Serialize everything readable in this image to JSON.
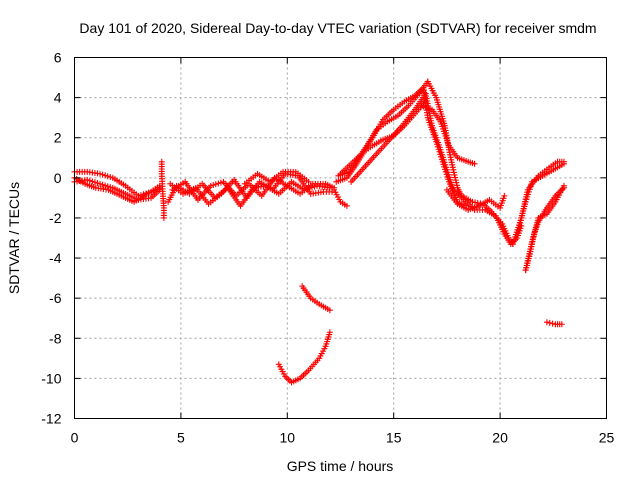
{
  "chart_data": {
    "type": "scatter",
    "title": "Day 101 of 2020, Sidereal Day-to-day VTEC variation (SDTVAR) for receiver smdm",
    "xlabel": "GPS time / hours",
    "ylabel": "SDTVAR / TECUs",
    "xlim": [
      0,
      25
    ],
    "ylim": [
      -12,
      6
    ],
    "x_ticks": [
      0,
      5,
      10,
      15,
      20,
      25
    ],
    "y_ticks": [
      -12,
      -10,
      -8,
      -6,
      -4,
      -2,
      0,
      2,
      4,
      6
    ],
    "x_tick_labels": [
      "0",
      "5",
      "10",
      "15",
      "20",
      "25"
    ],
    "y_tick_labels": [
      "-12",
      "-10",
      "-8",
      "-6",
      "-4",
      "-2",
      "0",
      "2",
      "4",
      "6"
    ],
    "grid": true,
    "marker": "plus",
    "series": [
      {
        "name": "SDTVAR",
        "color": "#ff0000",
        "tracks": [
          [
            [
              0.0,
              0.3
            ],
            [
              0.6,
              0.3
            ],
            [
              1.2,
              0.2
            ],
            [
              1.8,
              0.0
            ],
            [
              2.4,
              -0.4
            ],
            [
              3.0,
              -0.9
            ],
            [
              3.6,
              -0.7
            ],
            [
              4.0,
              -0.4
            ]
          ],
          [
            [
              0.0,
              -0.2
            ],
            [
              0.6,
              -0.1
            ],
            [
              1.2,
              -0.3
            ],
            [
              1.8,
              -0.5
            ],
            [
              2.4,
              -0.8
            ],
            [
              3.0,
              -1.1
            ],
            [
              3.6,
              -1.0
            ],
            [
              4.0,
              -0.6
            ]
          ],
          [
            [
              0.0,
              0.0
            ],
            [
              0.5,
              -0.3
            ],
            [
              1.0,
              -0.5
            ],
            [
              1.6,
              -0.6
            ],
            [
              2.2,
              -0.9
            ],
            [
              2.8,
              -1.2
            ],
            [
              3.4,
              -0.8
            ],
            [
              4.0,
              -0.5
            ]
          ],
          [
            [
              4.1,
              0.8
            ],
            [
              4.1,
              0.2
            ],
            [
              4.15,
              -0.8
            ],
            [
              4.2,
              -1.5
            ],
            [
              4.2,
              -2.0
            ]
          ],
          [
            [
              4.4,
              -1.2
            ],
            [
              4.8,
              -0.4
            ],
            [
              5.4,
              -0.8
            ],
            [
              6.0,
              -0.3
            ],
            [
              6.6,
              -1.0
            ],
            [
              7.2,
              -0.5
            ],
            [
              7.8,
              -1.4
            ],
            [
              8.4,
              -0.5
            ],
            [
              9.0,
              -0.4
            ],
            [
              9.6,
              -0.8
            ],
            [
              10.2,
              -0.2
            ],
            [
              10.8,
              -0.6
            ],
            [
              11.4,
              -0.4
            ],
            [
              12.0,
              -0.5
            ]
          ],
          [
            [
              4.6,
              -0.6
            ],
            [
              5.2,
              -0.2
            ],
            [
              5.8,
              -1.1
            ],
            [
              6.4,
              -0.4
            ],
            [
              7.0,
              -0.2
            ],
            [
              7.6,
              -0.9
            ],
            [
              8.2,
              -0.3
            ],
            [
              8.8,
              -0.9
            ],
            [
              9.4,
              0.0
            ],
            [
              10.0,
              -0.4
            ],
            [
              10.6,
              -0.8
            ],
            [
              11.2,
              -0.3
            ],
            [
              11.8,
              -0.3
            ],
            [
              12.2,
              -0.5
            ]
          ],
          [
            [
              4.5,
              -0.3
            ],
            [
              5.1,
              -0.8
            ],
            [
              5.7,
              -0.5
            ],
            [
              6.3,
              -1.3
            ],
            [
              6.9,
              -0.8
            ],
            [
              7.5,
              -0.1
            ],
            [
              8.1,
              -1.0
            ],
            [
              8.7,
              -0.2
            ],
            [
              9.3,
              -0.6
            ],
            [
              9.9,
              0.2
            ],
            [
              10.5,
              0.1
            ],
            [
              11.1,
              -0.8
            ],
            [
              11.7,
              -0.7
            ],
            [
              12.1,
              -0.7
            ]
          ],
          [
            [
              8.0,
              -0.3
            ],
            [
              8.6,
              0.2
            ],
            [
              9.2,
              -0.2
            ],
            [
              9.8,
              0.3
            ],
            [
              10.4,
              0.3
            ],
            [
              11.0,
              -0.2
            ]
          ],
          [
            [
              12.2,
              -0.6
            ],
            [
              12.5,
              -1.2
            ],
            [
              12.8,
              -1.4
            ]
          ],
          [
            [
              12.3,
              -0.2
            ],
            [
              12.8,
              0.0
            ],
            [
              13.2,
              0.6
            ],
            [
              13.6,
              1.3
            ],
            [
              14.0,
              1.6
            ],
            [
              14.5,
              1.9
            ],
            [
              15.0,
              2.1
            ],
            [
              15.5,
              2.6
            ],
            [
              16.0,
              3.2
            ],
            [
              16.5,
              3.8
            ]
          ],
          [
            [
              12.4,
              0.1
            ],
            [
              12.9,
              0.3
            ],
            [
              13.3,
              0.9
            ],
            [
              13.8,
              1.7
            ],
            [
              14.2,
              2.4
            ],
            [
              14.7,
              2.8
            ],
            [
              15.2,
              3.1
            ],
            [
              15.7,
              3.6
            ],
            [
              16.2,
              4.2
            ],
            [
              16.6,
              4.8
            ]
          ],
          [
            [
              12.5,
              0.2
            ],
            [
              13.0,
              0.7
            ],
            [
              13.5,
              1.2
            ],
            [
              14.0,
              2.0
            ],
            [
              14.5,
              2.9
            ],
            [
              15.0,
              3.4
            ],
            [
              15.5,
              3.8
            ],
            [
              16.0,
              4.1
            ],
            [
              16.4,
              4.5
            ]
          ],
          [
            [
              13.0,
              -0.2
            ],
            [
              13.6,
              0.5
            ],
            [
              14.2,
              1.2
            ],
            [
              14.8,
              1.9
            ],
            [
              15.4,
              2.6
            ],
            [
              16.0,
              3.4
            ],
            [
              16.5,
              4.2
            ]
          ],
          [
            [
              16.6,
              4.8
            ],
            [
              17.0,
              4.0
            ],
            [
              17.4,
              2.6
            ],
            [
              17.6,
              1.4
            ],
            [
              17.8,
              0.4
            ],
            [
              18.0,
              -0.5
            ],
            [
              18.2,
              -0.9
            ]
          ],
          [
            [
              16.5,
              4.2
            ],
            [
              16.8,
              2.6
            ],
            [
              17.2,
              1.4
            ],
            [
              17.5,
              0.4
            ],
            [
              17.8,
              -0.6
            ],
            [
              18.2,
              -1.0
            ],
            [
              18.8,
              -1.6
            ]
          ],
          [
            [
              16.4,
              4.5
            ],
            [
              16.6,
              3.0
            ],
            [
              17.0,
              1.8
            ],
            [
              17.3,
              0.8
            ],
            [
              17.6,
              -0.2
            ],
            [
              18.0,
              -1.2
            ],
            [
              18.4,
              -1.4
            ]
          ],
          [
            [
              16.3,
              3.6
            ],
            [
              16.8,
              3.4
            ],
            [
              17.2,
              2.8
            ],
            [
              17.6,
              1.6
            ],
            [
              18.0,
              1.0
            ],
            [
              18.5,
              0.8
            ],
            [
              18.8,
              0.7
            ]
          ],
          [
            [
              17.5,
              -0.6
            ],
            [
              18.0,
              -1.3
            ],
            [
              18.5,
              -1.6
            ],
            [
              19.0,
              -1.4
            ],
            [
              19.5,
              -1.1
            ],
            [
              20.0,
              -1.5
            ],
            [
              20.2,
              -0.9
            ]
          ],
          [
            [
              18.2,
              -0.9
            ],
            [
              18.7,
              -1.2
            ],
            [
              19.2,
              -1.3
            ],
            [
              19.6,
              -1.7
            ],
            [
              20.1,
              -2.3
            ],
            [
              20.4,
              -3.0
            ],
            [
              20.6,
              -3.3
            ]
          ],
          [
            [
              18.8,
              -1.6
            ],
            [
              19.3,
              -1.6
            ],
            [
              19.8,
              -1.9
            ],
            [
              20.2,
              -2.8
            ],
            [
              20.5,
              -3.3
            ],
            [
              20.8,
              -3.0
            ],
            [
              21.0,
              -2.4
            ]
          ],
          [
            [
              20.8,
              -3.0
            ],
            [
              21.0,
              -2.0
            ],
            [
              21.2,
              -1.2
            ],
            [
              21.5,
              -0.2
            ],
            [
              22.0,
              0.1
            ],
            [
              22.5,
              0.4
            ],
            [
              23.0,
              0.7
            ]
          ],
          [
            [
              20.6,
              -3.3
            ],
            [
              21.0,
              -2.0
            ],
            [
              21.3,
              -0.6
            ],
            [
              21.8,
              0.1
            ],
            [
              22.3,
              0.5
            ],
            [
              22.7,
              0.8
            ],
            [
              23.0,
              0.8
            ]
          ],
          [
            [
              21.2,
              -4.6
            ],
            [
              21.4,
              -3.8
            ],
            [
              21.6,
              -2.8
            ],
            [
              21.8,
              -2.2
            ],
            [
              22.2,
              -1.5
            ],
            [
              22.6,
              -0.9
            ],
            [
              23.0,
              -0.5
            ]
          ],
          [
            [
              21.2,
              -4.6
            ],
            [
              21.5,
              -3.2
            ],
            [
              21.8,
              -2.0
            ],
            [
              22.2,
              -1.8
            ],
            [
              22.6,
              -1.2
            ],
            [
              23.0,
              -0.4
            ]
          ],
          [
            [
              9.6,
              -9.3
            ],
            [
              9.9,
              -9.9
            ],
            [
              10.2,
              -10.2
            ],
            [
              10.6,
              -10.0
            ],
            [
              11.0,
              -9.6
            ],
            [
              11.5,
              -9.0
            ],
            [
              11.8,
              -8.4
            ],
            [
              12.0,
              -7.7
            ]
          ],
          [
            [
              10.7,
              -5.4
            ],
            [
              11.1,
              -6.0
            ],
            [
              11.5,
              -6.3
            ],
            [
              12.0,
              -6.6
            ]
          ],
          [
            [
              22.2,
              -7.2
            ],
            [
              22.6,
              -7.3
            ],
            [
              22.9,
              -7.3
            ]
          ]
        ]
      }
    ]
  }
}
